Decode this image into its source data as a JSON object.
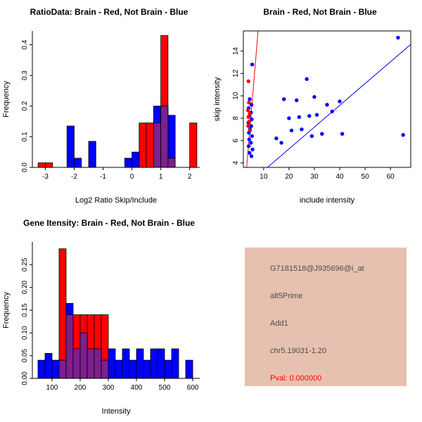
{
  "window": {
    "background": "#ffffff"
  },
  "colors": {
    "red": "#ff0000",
    "blue": "#0000ff",
    "overlap": "#7d1f8e",
    "axis": "#000000",
    "info_box_bg": "#e7c1af",
    "info_text": "#4d4d4d",
    "pval_text": "#ff0000"
  },
  "chart_data": [
    {
      "id": "ratio-histogram",
      "type": "bar",
      "variant": "overlaid-histogram",
      "title": "RatioData: Brain - Red, Not Brain - Blue",
      "xlabel": "Log2 Ratio Skip/Include",
      "ylabel": "Frequency",
      "xlim": [
        -3.45,
        2.35
      ],
      "ylim": [
        0,
        0.445
      ],
      "xticks": [
        -3,
        -2,
        -1,
        0,
        1,
        2
      ],
      "xtick_labels": [
        "-3",
        "-2",
        "-1",
        "0",
        "1",
        "2"
      ],
      "yticks": [
        0,
        0.1,
        0.2,
        0.3,
        0.4
      ],
      "ytick_labels": [
        "0.0",
        "0.1",
        "0.2",
        "0.3",
        "0.4"
      ],
      "bin_width": 0.25,
      "grid": false,
      "legend": "none",
      "series": [
        {
          "name": "Brain",
          "color": "red",
          "bins": [
            [
              -3.25,
              0.015
            ],
            [
              -3,
              0.015
            ],
            [
              0.25,
              0.145
            ],
            [
              0.5,
              0.145
            ],
            [
              0.75,
              0.145
            ],
            [
              1,
              0.43
            ],
            [
              1.25,
              0.03
            ],
            [
              2,
              0.145
            ]
          ]
        },
        {
          "name": "Not Brain",
          "color": "blue",
          "bins": [
            [
              -2.25,
              0.135
            ],
            [
              -2,
              0.03
            ],
            [
              -1.5,
              0.085
            ],
            [
              -0.25,
              0.03
            ],
            [
              0,
              0.05
            ],
            [
              0.75,
              0.2
            ],
            [
              1,
              0.2
            ],
            [
              1.25,
              0.17
            ]
          ]
        }
      ]
    },
    {
      "id": "skip-include-scatter",
      "type": "scatter",
      "title": "Brain - Red, Not Brain - Blue",
      "xlabel": "include intensity",
      "ylabel": "skip intensity",
      "xlim": [
        2,
        68
      ],
      "ylim": [
        3.6,
        15.8
      ],
      "xticks": [
        10,
        20,
        30,
        40,
        50,
        60
      ],
      "xtick_labels": [
        "10",
        "20",
        "30",
        "40",
        "50",
        "60"
      ],
      "yticks": [
        4,
        6,
        8,
        10,
        12,
        14
      ],
      "ytick_labels": [
        "4",
        "6",
        "8",
        "10",
        "12",
        "14"
      ],
      "grid": false,
      "legend": "none",
      "series": [
        {
          "name": "Not Brain",
          "color": "blue",
          "points": [
            [
              5.5,
              12.8
            ],
            [
              4.5,
              9.7
            ],
            [
              5.2,
              9.2
            ],
            [
              4.1,
              8.9
            ],
            [
              5,
              8.5
            ],
            [
              4.4,
              8.2
            ],
            [
              5.3,
              7.9
            ],
            [
              4,
              7.6
            ],
            [
              5.1,
              7.3
            ],
            [
              4.6,
              7
            ],
            [
              4.2,
              6.7
            ],
            [
              5.4,
              6.4
            ],
            [
              4.3,
              6.1
            ],
            [
              5,
              5.8
            ],
            [
              4.1,
              5.5
            ],
            [
              5.6,
              5.2
            ],
            [
              4.4,
              4.9
            ],
            [
              5.2,
              4.6
            ],
            [
              15,
              6.2
            ],
            [
              17,
              5.8
            ],
            [
              18,
              9.7
            ],
            [
              20,
              8
            ],
            [
              21,
              6.9
            ],
            [
              23,
              9.6
            ],
            [
              24,
              8.1
            ],
            [
              25,
              7
            ],
            [
              27,
              11.5
            ],
            [
              28,
              8.2
            ],
            [
              29,
              6.4
            ],
            [
              30,
              9.9
            ],
            [
              31,
              8.3
            ],
            [
              33,
              6.6
            ],
            [
              35,
              9.2
            ],
            [
              37,
              8.6
            ],
            [
              40,
              9.5
            ],
            [
              41,
              6.6
            ],
            [
              63,
              15.2
            ],
            [
              65,
              6.5
            ]
          ]
        },
        {
          "name": "Brain",
          "color": "red",
          "points": [
            [
              4,
              11.3
            ],
            [
              4.2,
              9.4
            ],
            [
              3.8,
              8.7
            ],
            [
              4.5,
              8.4
            ],
            [
              4,
              8.1
            ],
            [
              4.3,
              7.7
            ],
            [
              3.9,
              7.3
            ],
            [
              4.6,
              6.9
            ]
          ]
        }
      ],
      "fit_lines": [
        {
          "color": "red",
          "x1": 3.3,
          "y1": 3.6,
          "x2": 7.8,
          "y2": 15.8
        },
        {
          "color": "blue",
          "x1": 11.5,
          "y1": 3.6,
          "x2": 68,
          "y2": 14.6
        }
      ]
    },
    {
      "id": "gene-intensity-histogram",
      "type": "bar",
      "variant": "overlaid-histogram",
      "title": "Gene Itensity: Brain - Red, Not Brain - Blue",
      "xlabel": "Intensity",
      "ylabel": "Frequency",
      "xlim": [
        30,
        625
      ],
      "ylim": [
        0,
        0.3
      ],
      "xticks": [
        100,
        200,
        300,
        400,
        500,
        600
      ],
      "xtick_labels": [
        "100",
        "200",
        "300",
        "400",
        "500",
        "600"
      ],
      "yticks": [
        0,
        0.05,
        0.1,
        0.15,
        0.2,
        0.25
      ],
      "ytick_labels": [
        "0.00",
        "0.05",
        "0.10",
        "0.15",
        "0.20",
        "0.25"
      ],
      "bin_width": 25,
      "grid": false,
      "legend": "none",
      "series": [
        {
          "name": "Brain",
          "color": "red",
          "bins": [
            [
              125,
              0.285
            ],
            [
              150,
              0.14
            ],
            [
              175,
              0.14
            ],
            [
              200,
              0.14
            ],
            [
              225,
              0.14
            ],
            [
              250,
              0.14
            ],
            [
              275,
              0.14
            ]
          ]
        },
        {
          "name": "Not Brain",
          "color": "blue",
          "bins": [
            [
              50,
              0.04
            ],
            [
              75,
              0.055
            ],
            [
              100,
              0.04
            ],
            [
              125,
              0.04
            ],
            [
              150,
              0.165
            ],
            [
              175,
              0.065
            ],
            [
              200,
              0.1
            ],
            [
              225,
              0.065
            ],
            [
              250,
              0.065
            ],
            [
              275,
              0.04
            ],
            [
              300,
              0.065
            ],
            [
              325,
              0.04
            ],
            [
              350,
              0.065
            ],
            [
              375,
              0.04
            ],
            [
              400,
              0.065
            ],
            [
              425,
              0.04
            ],
            [
              450,
              0.065
            ],
            [
              475,
              0.065
            ],
            [
              500,
              0.04
            ],
            [
              525,
              0.065
            ],
            [
              575,
              0.04
            ]
          ]
        }
      ]
    }
  ],
  "info_box": {
    "lines": [
      {
        "text": "G7181518@J935696@i_at",
        "color": "#4d4d4d"
      },
      {
        "text": "alt5Prime",
        "color": "#4d4d4d"
      },
      {
        "text": "Add1",
        "color": "#4d4d4d"
      },
      {
        "text": "chr5.19031-1.20",
        "color": "#4d4d4d"
      },
      {
        "text": "Pval: 0.000000",
        "color": "#ff0000"
      }
    ]
  }
}
